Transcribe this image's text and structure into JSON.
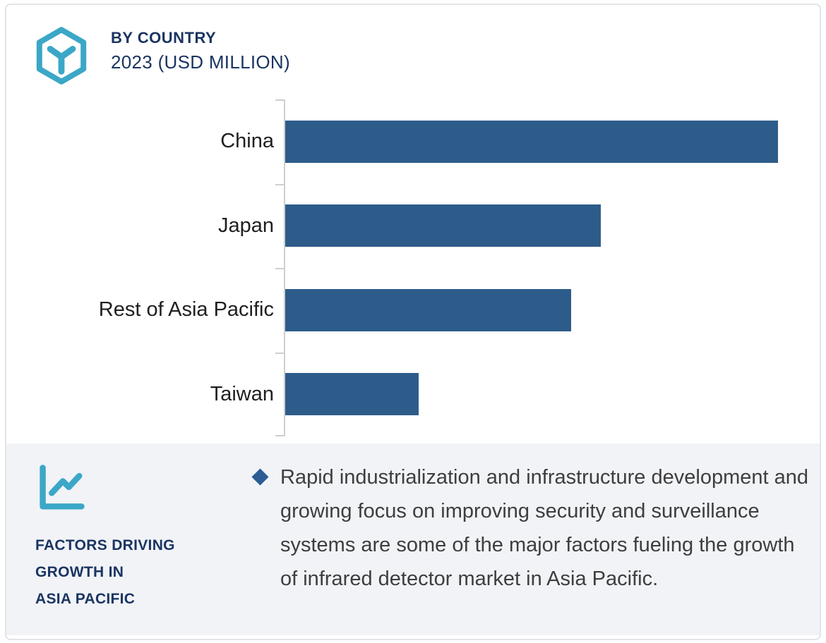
{
  "header": {
    "title": "BY COUNTRY",
    "subtitle": "2023 (USD MILLION)"
  },
  "logo": {
    "icon": "hexagon-cube-logo",
    "color": "#3ba7c7"
  },
  "chart_data": {
    "type": "bar",
    "orientation": "horizontal",
    "title": "BY COUNTRY",
    "subtitle": "2023 (USD MILLION)",
    "unit": "USD Million",
    "year": "2023",
    "categories": [
      "China",
      "Japan",
      "Rest of Asia Pacific",
      "Taiwan"
    ],
    "values": [
      100,
      64,
      58,
      27
    ],
    "values_note": "relative bar lengths as % of longest bar; numeric value axis not labeled in figure",
    "xmax": 108,
    "grid": false,
    "value_labels": false,
    "bar_color": "#2d5c8a",
    "axis_color": "#cfcfcf"
  },
  "panel": {
    "background": "#f1f3f7",
    "icon": "trend-line-chart-icon",
    "icon_color": "#3ba7c7",
    "heading_lines": [
      "FACTORS DRIVING",
      "GROWTH IN",
      "ASIA PACIFIC"
    ],
    "bullet": {
      "marker": "diamond",
      "marker_color": "#2b5c94",
      "text": "Rapid industrialization and infrastructure development and growing focus on improving security and surveillance systems are some of the major factors fueling the growth of infrared detector market in Asia Pacific."
    }
  },
  "colors": {
    "accent_teal": "#3ba7c7",
    "navy": "#1a3561",
    "bar_blue": "#2d5c8a",
    "body_text": "#3e3e3e",
    "panel_gray": "#f1f3f7",
    "border_gray": "#e3e4e8"
  }
}
